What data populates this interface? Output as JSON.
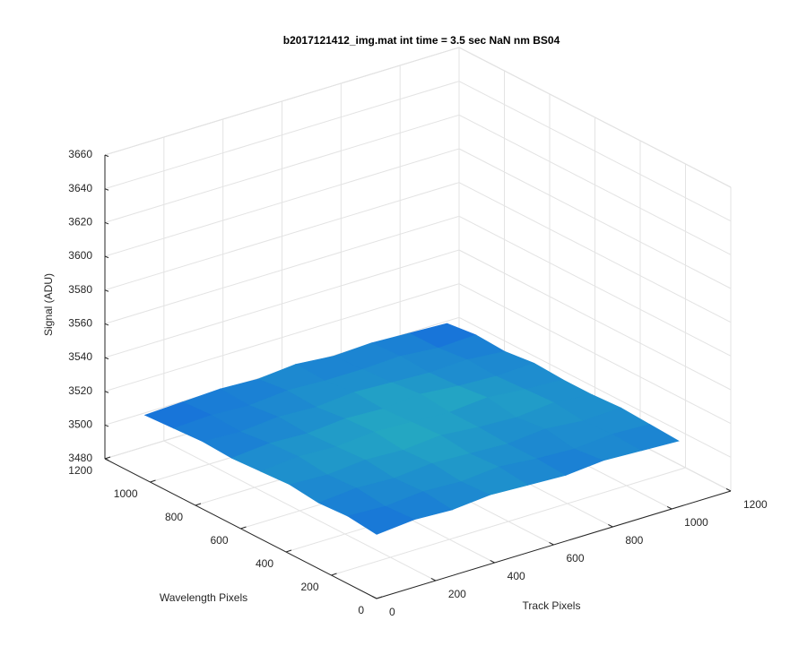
{
  "chart_data": {
    "type": "surface",
    "title": "b2017121412_img.mat int time = 3.5 sec  NaN nm BS04",
    "x_label": "Track Pixels",
    "y_label": "Wavelength Pixels",
    "z_label": "Signal (ADU)",
    "x": [
      0,
      128,
      256,
      384,
      512,
      640,
      768,
      896,
      1024
    ],
    "y": [
      0,
      128,
      256,
      384,
      512,
      640,
      768,
      896,
      1024
    ],
    "z": [
      [
        3518,
        3520,
        3519,
        3521,
        3520,
        3519,
        3521,
        3520,
        3519
      ],
      [
        3520,
        3519,
        3521,
        3520,
        3522,
        3520,
        3519,
        3521,
        3520
      ],
      [
        3519,
        3521,
        3520,
        3522,
        3521,
        3520,
        3522,
        3520,
        3521
      ],
      [
        3521,
        3520,
        3522,
        3521,
        3523,
        3521,
        3520,
        3522,
        3520
      ],
      [
        3520,
        3522,
        3521,
        3523,
        3522,
        3521,
        3523,
        3521,
        3520
      ],
      [
        3519,
        3521,
        3520,
        3522,
        3521,
        3523,
        3521,
        3520,
        3521
      ],
      [
        3520,
        3519,
        3521,
        3520,
        3522,
        3521,
        3520,
        3521,
        3519
      ],
      [
        3519,
        3520,
        3519,
        3521,
        3520,
        3520,
        3521,
        3519,
        3520
      ],
      [
        3518,
        3519,
        3520,
        3519,
        3521,
        3519,
        3520,
        3519,
        3518
      ]
    ],
    "colormap": [
      "#1466e0",
      "#27b3bd"
    ],
    "xlim": [
      0,
      1200
    ],
    "xticks": [
      0,
      200,
      400,
      600,
      800,
      1000,
      1200
    ],
    "ylim": [
      0,
      1200
    ],
    "yticks": [
      0,
      200,
      400,
      600,
      800,
      1000,
      1200
    ],
    "zlim": [
      3480,
      3660
    ],
    "zticks": [
      3480,
      3500,
      3520,
      3540,
      3560,
      3580,
      3600,
      3620,
      3640,
      3660
    ],
    "grid": true
  }
}
